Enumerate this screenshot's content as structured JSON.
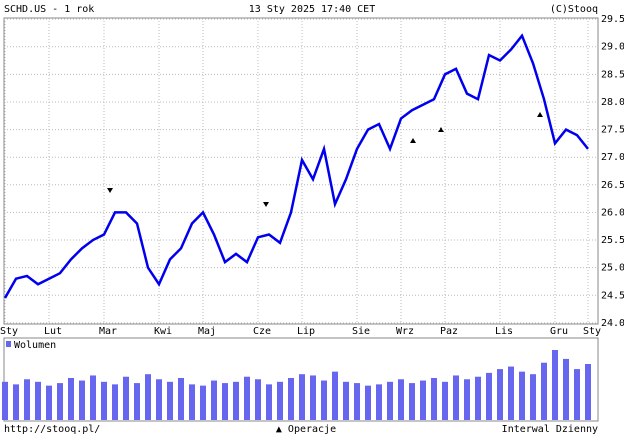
{
  "header": {
    "left": "SCHD.US - 1 rok",
    "center": "13 Sty 2025 17:40 CET",
    "right": "(C)Stooq"
  },
  "footer": {
    "left": "http://stooq.pl/",
    "center": "▲ Operacje",
    "right": "Interwal Dzienny"
  },
  "chart_data": [
    {
      "type": "line",
      "categories": [
        "Sty",
        null,
        null,
        null,
        "Lut",
        null,
        null,
        null,
        null,
        "Mar",
        null,
        null,
        null,
        null,
        "Kwi",
        null,
        null,
        null,
        "Maj",
        null,
        null,
        null,
        null,
        "Cze",
        null,
        null,
        null,
        "Lip",
        null,
        null,
        null,
        null,
        "Sie",
        null,
        null,
        null,
        "Wrz",
        null,
        null,
        null,
        "Paz",
        null,
        null,
        null,
        null,
        "Lis",
        null,
        null,
        null,
        null,
        "Gru",
        null,
        null,
        "Sty"
      ],
      "series": [
        {
          "name": "SCHD.US",
          "color": "#0000ee",
          "values": [
            24.45,
            24.8,
            24.85,
            24.7,
            24.8,
            24.9,
            25.15,
            25.35,
            25.5,
            25.6,
            26.0,
            26.0,
            25.8,
            25.0,
            24.7,
            25.15,
            25.35,
            25.8,
            26.0,
            25.6,
            25.1,
            25.25,
            25.1,
            25.55,
            25.6,
            25.45,
            26.0,
            26.95,
            26.6,
            27.15,
            26.15,
            26.6,
            27.15,
            27.5,
            27.6,
            27.15,
            27.7,
            27.85,
            27.95,
            28.05,
            28.5,
            28.6,
            28.15,
            28.05,
            28.85,
            28.75,
            28.95,
            29.2,
            28.7,
            28.05,
            27.25,
            27.5,
            27.4,
            27.15
          ]
        }
      ],
      "ylim": [
        23.98,
        29.52
      ],
      "yticks": [
        {
          "value": 24,
          "label": "24.0"
        },
        {
          "value": 24.5,
          "label": "24.5"
        },
        {
          "value": 25,
          "label": "25.0"
        },
        {
          "value": 25.5,
          "label": "25.5"
        },
        {
          "value": 26,
          "label": "26.0"
        },
        {
          "value": 26.5,
          "label": "26.5"
        },
        {
          "value": 27,
          "label": "27.0"
        },
        {
          "value": 27.5,
          "label": "27.5"
        },
        {
          "value": 28,
          "label": "28.0"
        },
        {
          "value": 28.5,
          "label": "28.5"
        },
        {
          "value": 29,
          "label": "29.0"
        },
        {
          "value": 29.5,
          "label": "29.5"
        }
      ],
      "grid": true
    },
    {
      "type": "bar",
      "series": [
        {
          "name": "Wolumen",
          "color": "#6666ee",
          "values": [
            30,
            28,
            32,
            30,
            27,
            29,
            33,
            31,
            35,
            30,
            28,
            34,
            29,
            36,
            32,
            30,
            33,
            28,
            27,
            31,
            29,
            30,
            34,
            32,
            28,
            30,
            33,
            36,
            35,
            31,
            38,
            30,
            29,
            27,
            28,
            30,
            32,
            29,
            31,
            33,
            30,
            35,
            32,
            34,
            37,
            40,
            42,
            38,
            36,
            45,
            55,
            48,
            40,
            44
          ]
        }
      ]
    }
  ]
}
